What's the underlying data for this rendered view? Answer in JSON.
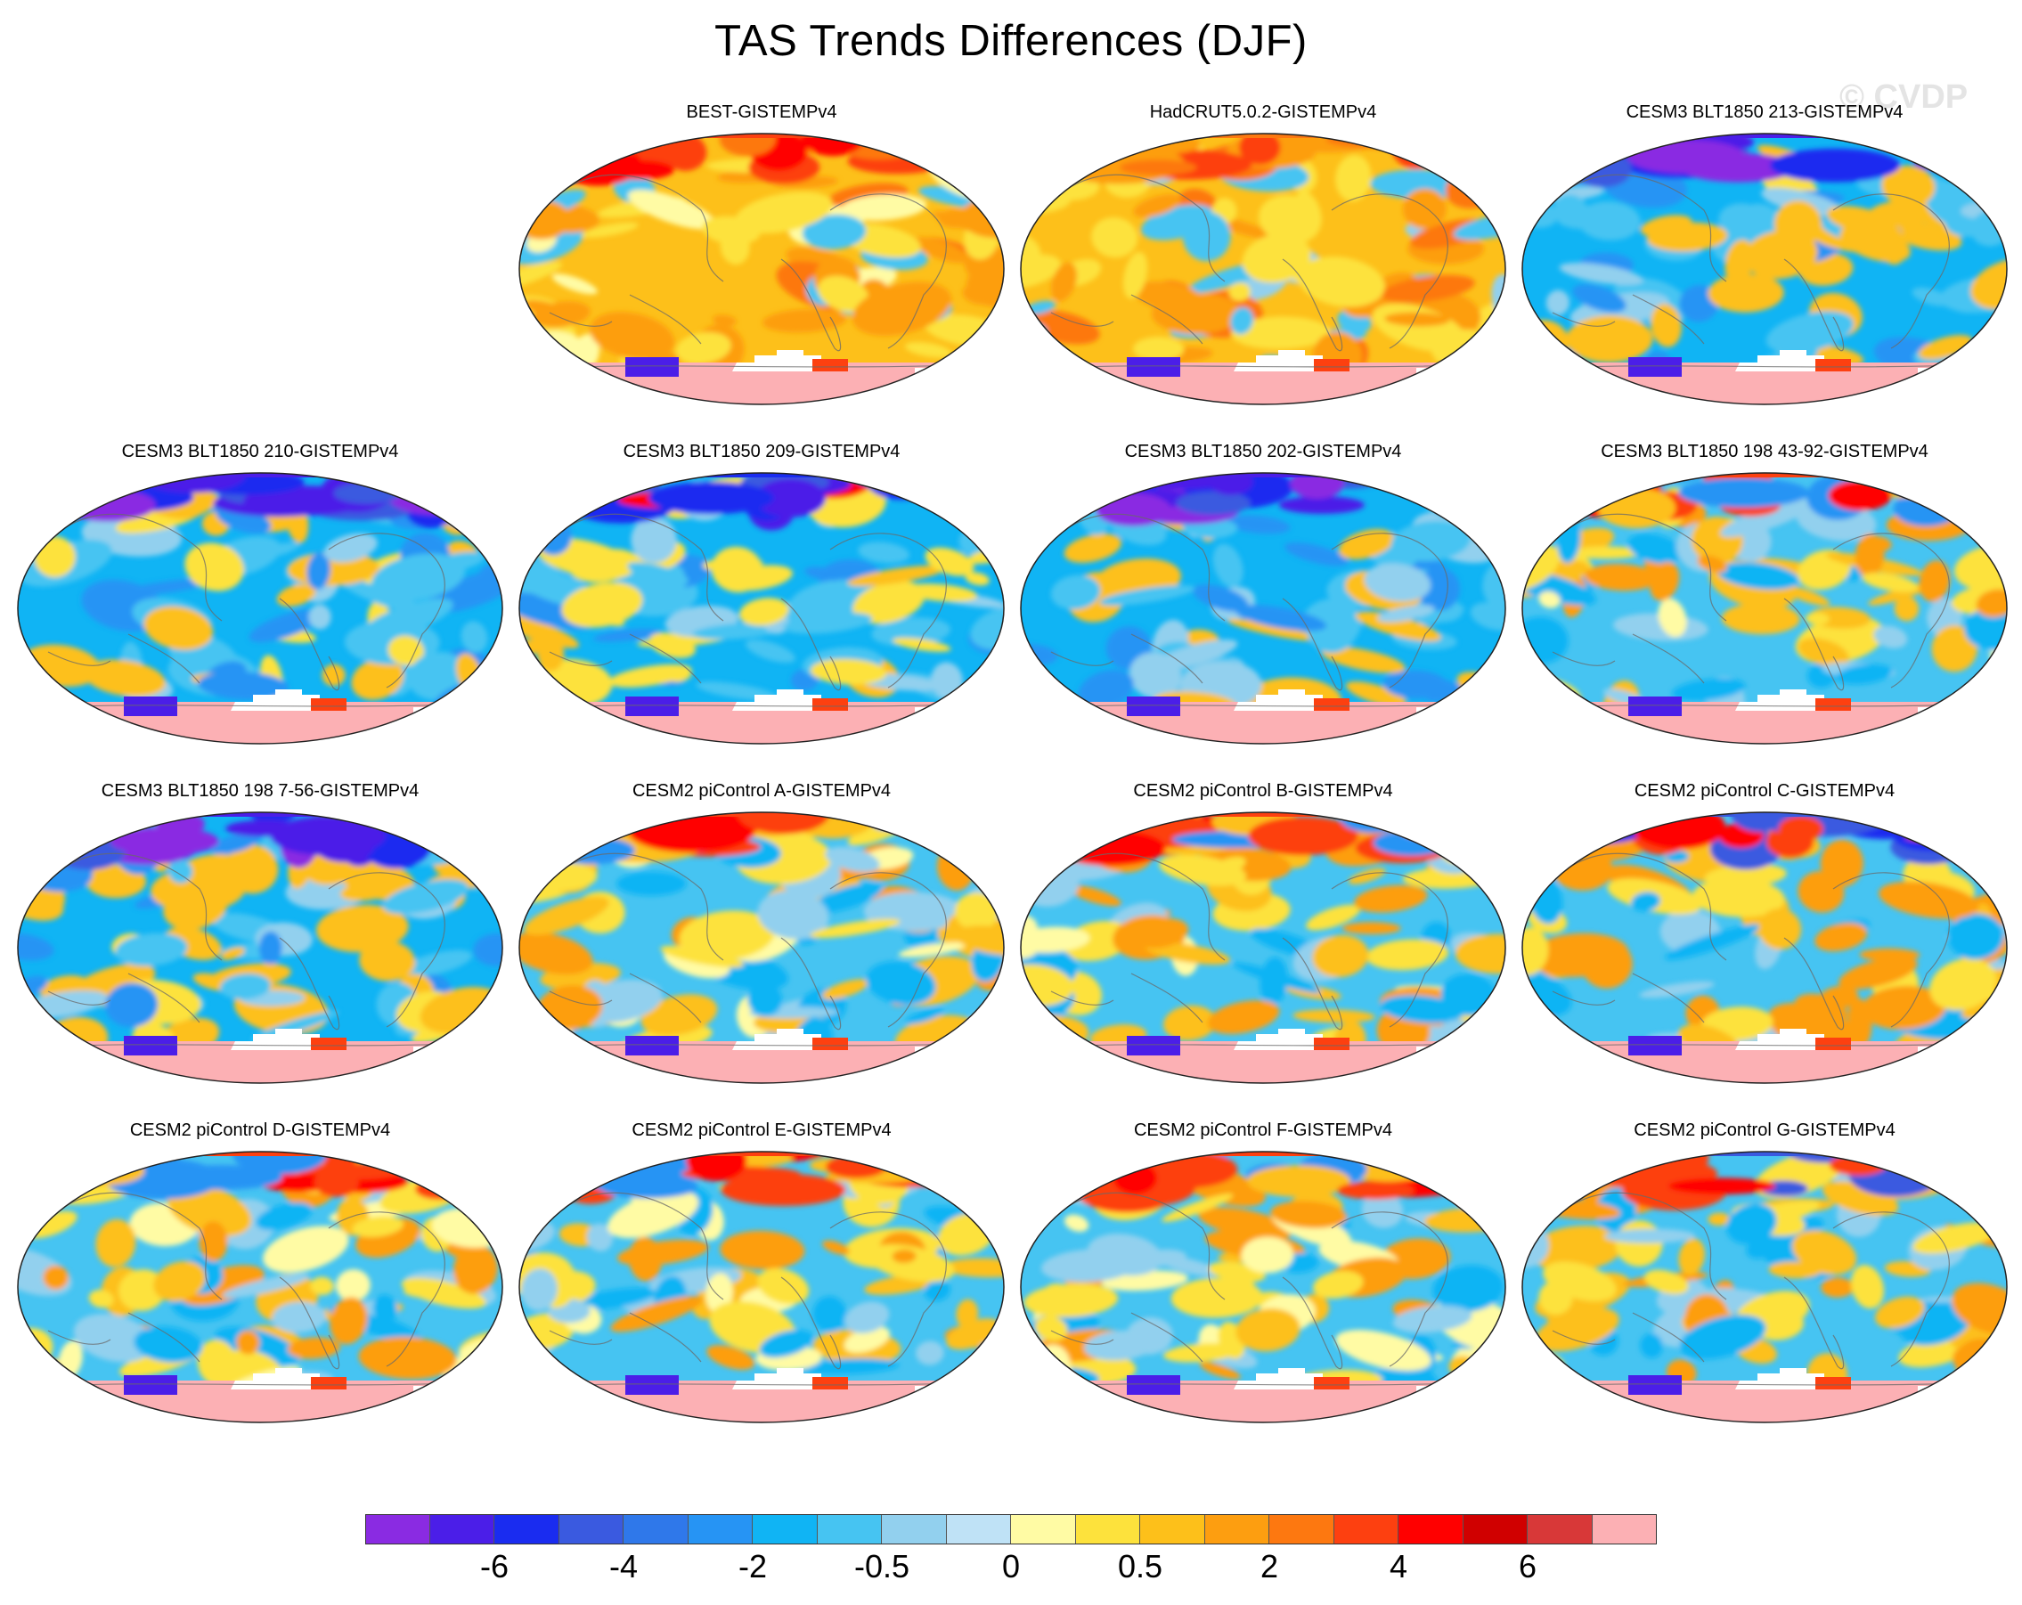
{
  "title": "TAS Trends Differences (DJF)",
  "watermark": "© CVDP",
  "panels": [
    {
      "title": "BEST-GISTEMPv4",
      "pattern": "warm"
    },
    {
      "title": "HadCRUT5.0.2-GISTEMPv4",
      "pattern": "warm2"
    },
    {
      "title": "CESM3 BLT1850 213-GISTEMPv4",
      "pattern": "cool"
    },
    {
      "title": "CESM3 BLT1850 210-GISTEMPv4",
      "pattern": "cool"
    },
    {
      "title": "CESM3 BLT1850 209-GISTEMPv4",
      "pattern": "cool2"
    },
    {
      "title": "CESM3 BLT1850 202-GISTEMPv4",
      "pattern": "cool"
    },
    {
      "title": "CESM3 BLT1850 198 43-92-GISTEMPv4",
      "pattern": "mixed"
    },
    {
      "title": "CESM3 BLT1850 198 7-56-GISTEMPv4",
      "pattern": "cool"
    },
    {
      "title": "CESM2 piControl A-GISTEMPv4",
      "pattern": "mixed"
    },
    {
      "title": "CESM2 piControl B-GISTEMPv4",
      "pattern": "mixed"
    },
    {
      "title": "CESM2 piControl C-GISTEMPv4",
      "pattern": "mixed2"
    },
    {
      "title": "CESM2 piControl D-GISTEMPv4",
      "pattern": "mixed"
    },
    {
      "title": "CESM2 piControl E-GISTEMPv4",
      "pattern": "mixed"
    },
    {
      "title": "CESM2 piControl F-GISTEMPv4",
      "pattern": "mixed"
    },
    {
      "title": "CESM2 piControl G-GISTEMPv4",
      "pattern": "mixed2"
    }
  ],
  "colorbar": {
    "colors": [
      "#8a2be2",
      "#4b1ee8",
      "#1a2cf0",
      "#3a5ae0",
      "#2f78ea",
      "#2694f4",
      "#10b4f4",
      "#46c4f2",
      "#92d0ee",
      "#bfe2f6",
      "#fffba4",
      "#fde23c",
      "#fdc01a",
      "#fd9e10",
      "#fd7810",
      "#fd4010",
      "#ff0000",
      "#d00000",
      "#d83838",
      "#fcb0b4"
    ],
    "labels": [
      "-6",
      "-4",
      "-2",
      "-0.5",
      "0",
      "0.5",
      "2",
      "4",
      "6"
    ],
    "label_boundaries": [
      2,
      4,
      6,
      8,
      10,
      12,
      14,
      16,
      18
    ]
  }
}
